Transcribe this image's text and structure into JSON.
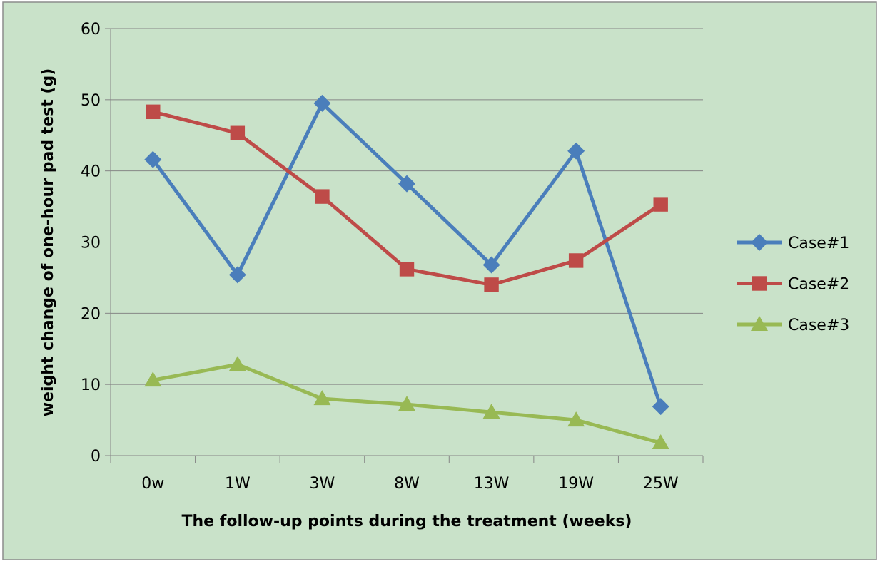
{
  "chart_data": {
    "type": "line",
    "title": "",
    "xlabel": "The follow-up points during the treatment (weeks)",
    "ylabel": "weight change of one-hour pad test (g)",
    "categories": [
      "0w",
      "1W",
      "3W",
      "8W",
      "13W",
      "19W",
      "25W"
    ],
    "ylim": [
      0,
      60
    ],
    "yticks": [
      0,
      10,
      20,
      30,
      40,
      50,
      60
    ],
    "grid": true,
    "legend_position": "right",
    "background": "#c9e2c9",
    "series": [
      {
        "name": "Case#1",
        "color": "#4a7ebb",
        "marker": "diamond",
        "values": [
          41.6,
          25.4,
          49.5,
          38.2,
          26.8,
          42.8,
          6.9
        ]
      },
      {
        "name": "Case#2",
        "color": "#be4b48",
        "marker": "square",
        "values": [
          48.3,
          45.3,
          36.4,
          26.2,
          24.0,
          27.4,
          35.3
        ]
      },
      {
        "name": "Case#3",
        "color": "#98b954",
        "marker": "triangle",
        "values": [
          10.6,
          12.8,
          8.0,
          7.2,
          6.1,
          5.0,
          1.8
        ]
      }
    ]
  }
}
